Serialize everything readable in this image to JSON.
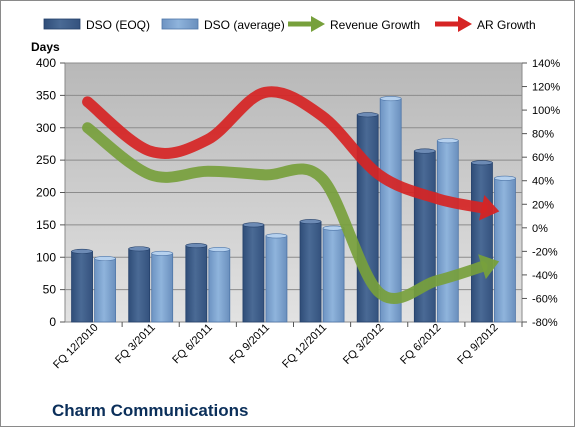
{
  "chart_data": {
    "type": "bar",
    "title": "Charm Communications",
    "ylabel": "Days",
    "ylim": [
      0,
      400
    ],
    "yticks": [
      0,
      50,
      100,
      150,
      200,
      250,
      300,
      350,
      400
    ],
    "y2lim": [
      -80,
      140
    ],
    "y2ticks": [
      "-80%",
      "-60%",
      "-40%",
      "-20%",
      "0%",
      "20%",
      "40%",
      "60%",
      "80%",
      "100%",
      "120%",
      "140%"
    ],
    "y2values": [
      -80,
      -60,
      -40,
      -20,
      0,
      20,
      40,
      60,
      80,
      100,
      120,
      140
    ],
    "categories": [
      "FQ 12/2010",
      "FQ 3/2011",
      "FQ 6/2011",
      "FQ 9/2011",
      "FQ 12/2011",
      "FQ 3/2012",
      "FQ 6/2012",
      "FQ 9/2012"
    ],
    "series": [
      {
        "name": "DSO (EOQ)",
        "kind": "bar",
        "axis": "left",
        "values": [
          109,
          113,
          118,
          150,
          155,
          320,
          264,
          246
        ]
      },
      {
        "name": "DSO (average)",
        "kind": "bar",
        "axis": "left",
        "values": [
          98,
          106,
          112,
          133,
          145,
          345,
          280,
          222
        ]
      },
      {
        "name": "Revenue Growth",
        "kind": "arrow-line",
        "axis": "right",
        "values": [
          85,
          45,
          48,
          45,
          42,
          -55,
          -45,
          -30
        ]
      },
      {
        "name": "AR Growth",
        "kind": "arrow-line",
        "axis": "right",
        "values": [
          107,
          65,
          75,
          115,
          95,
          45,
          25,
          15
        ]
      }
    ],
    "legend_position": "top",
    "grid": true,
    "colors": {
      "bar_eoq": "#4a6a95",
      "bar_avg": "#8fb4dc",
      "revenue_growth": "#77a03c",
      "ar_growth": "#d62424",
      "plot_bg": "#c8c8c8",
      "page_bg": "#ffffff"
    }
  }
}
